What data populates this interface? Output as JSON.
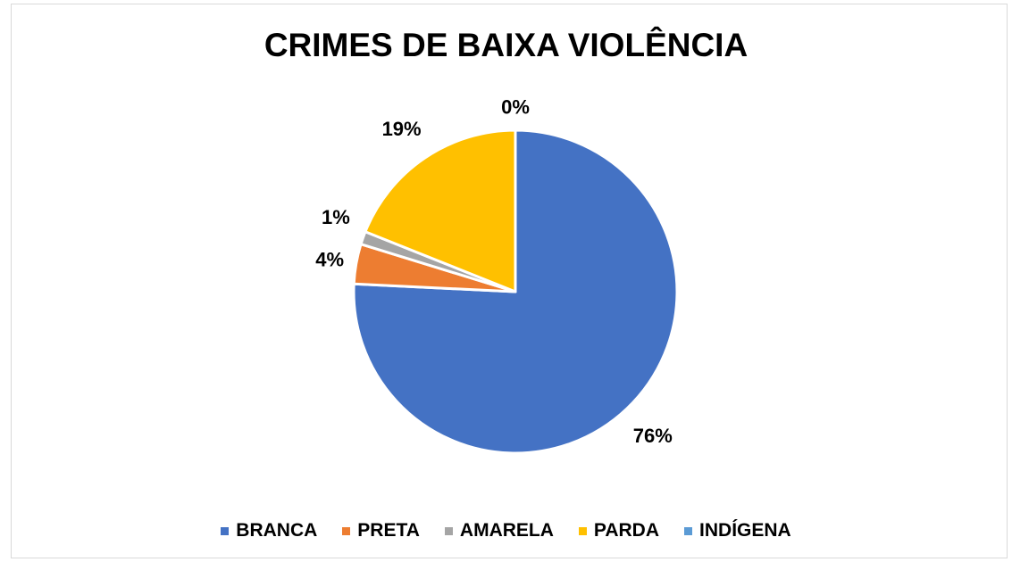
{
  "chart_data": {
    "type": "pie",
    "title": "CRIMES DE BAIXA VIOLÊNCIA",
    "legend_position": "bottom",
    "slices": [
      {
        "name": "BRANCA",
        "value": 76,
        "label": "76%",
        "color": "#4472C4"
      },
      {
        "name": "PRETA",
        "value": 4,
        "label": "4%",
        "color": "#ED7D31"
      },
      {
        "name": "AMARELA",
        "value": 1.3,
        "label": "1%",
        "color": "#A5A5A5"
      },
      {
        "name": "PARDA",
        "value": 19,
        "label": "19%",
        "color": "#FFC000"
      },
      {
        "name": "INDÍGENA",
        "value": 0,
        "label": "0%",
        "color": "#5B9BD5"
      }
    ]
  }
}
